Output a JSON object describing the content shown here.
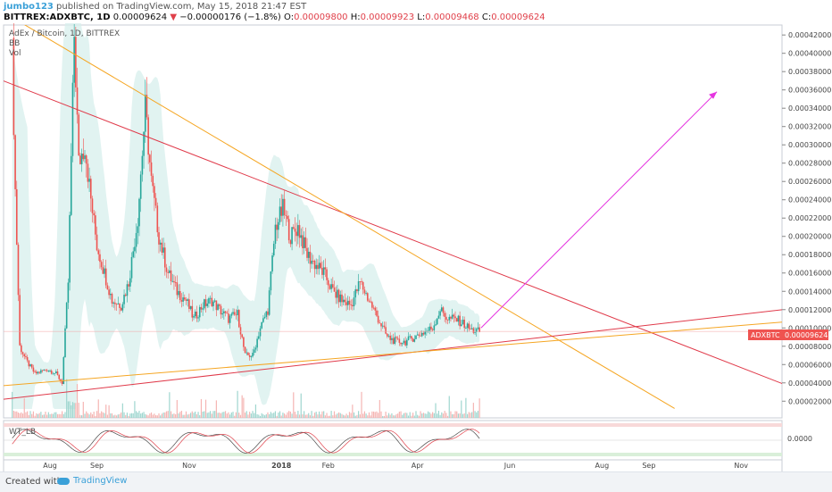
{
  "header": {
    "user": "jumbo123",
    "published": " published on TradingView.com, May 15, 2018 21:47 EST",
    "symbol": "BITTREX:ADXBTC, 1D",
    "last": "0.00009624",
    "change": "−0.00000176 (−1.8%)",
    "o_label": "O:",
    "o": "0.00009800",
    "h_label": "H:",
    "h": "0.00009923",
    "l_label": "L:",
    "l": "0.00009468",
    "c_label": "C:",
    "c": "0.00009624"
  },
  "legend": {
    "title": "AdEx / Bitcoin, 1D, BITTREX",
    "items": [
      "BB",
      "Vol"
    ]
  },
  "price_tag": {
    "symbol": "ADXBTC",
    "value": "0.00009624"
  },
  "oscillator": {
    "label": "WT_LB",
    "tick": "0.0000"
  },
  "footer": {
    "created": "Created with",
    "brand": "TradingView"
  },
  "colors": {
    "up": "#26a69a",
    "down": "#ef5350",
    "bb_fill": "#d7efec",
    "red_line": "#e03a4a",
    "orange_line": "#f5a623",
    "magenta": "#e535e0"
  },
  "chart_data": {
    "type": "candlestick",
    "title": "AdEx / Bitcoin, 1D, BITTREX",
    "y_axis_ticks": [
      "0.00042000",
      "0.00040000",
      "0.00038000",
      "0.00036000",
      "0.00034000",
      "0.00032000",
      "0.00030000",
      "0.00028000",
      "0.00026000",
      "0.00024000",
      "0.00022000",
      "0.00020000",
      "0.00018000",
      "0.00016000",
      "0.00014000",
      "0.00012000",
      "0.00010000",
      "0.00008000",
      "0.00006000",
      "0.00004000",
      "0.00002000"
    ],
    "ylim": [
      1.15e-05,
      0.000427
    ],
    "x_axis_ticks": [
      {
        "label": "Aug",
        "day": 26
      },
      {
        "label": "Sep",
        "day": 57
      },
      {
        "label": "Nov",
        "day": 118
      },
      {
        "label": "2018",
        "day": 179
      },
      {
        "label": "Feb",
        "day": 210
      },
      {
        "label": "Apr",
        "day": 269
      },
      {
        "label": "Jun",
        "day": 330
      },
      {
        "label": "Aug",
        "day": 391
      },
      {
        "label": "Sep",
        "day": 422
      },
      {
        "label": "Nov",
        "day": 483
      }
    ],
    "price_anchors": [
      [
        1,
        0.0004
      ],
      [
        3,
        0.00025
      ],
      [
        6,
        8e-05
      ],
      [
        10,
        6.5e-05
      ],
      [
        16,
        5e-05
      ],
      [
        24,
        5.5e-05
      ],
      [
        30,
        5e-05
      ],
      [
        34,
        4e-05
      ],
      [
        38,
        0.00015
      ],
      [
        42,
        0.00042
      ],
      [
        45,
        0.00028
      ],
      [
        49,
        0.0003
      ],
      [
        53,
        0.00024
      ],
      [
        57,
        0.00019
      ],
      [
        62,
        0.00016
      ],
      [
        67,
        0.00013
      ],
      [
        73,
        0.000125
      ],
      [
        78,
        0.00015
      ],
      [
        84,
        0.00022
      ],
      [
        89,
        0.00034
      ],
      [
        93,
        0.00026
      ],
      [
        98,
        0.0002
      ],
      [
        104,
        0.00016
      ],
      [
        110,
        0.00014
      ],
      [
        116,
        0.00013
      ],
      [
        121,
        0.00011
      ],
      [
        127,
        0.000125
      ],
      [
        133,
        0.00013
      ],
      [
        138,
        0.00012
      ],
      [
        144,
        0.00011
      ],
      [
        150,
        0.000115
      ],
      [
        155,
        7e-05
      ],
      [
        160,
        7e-05
      ],
      [
        165,
        0.0001
      ],
      [
        170,
        0.00012
      ],
      [
        175,
        0.00021
      ],
      [
        180,
        0.00023
      ],
      [
        185,
        0.0002
      ],
      [
        190,
        0.00021
      ],
      [
        196,
        0.00018
      ],
      [
        201,
        0.00017
      ],
      [
        207,
        0.00016
      ],
      [
        213,
        0.00014
      ],
      [
        219,
        0.00013
      ],
      [
        225,
        0.000125
      ],
      [
        231,
        0.00015
      ],
      [
        237,
        0.00013
      ],
      [
        243,
        0.00011
      ],
      [
        249,
        9e-05
      ],
      [
        255,
        8.5e-05
      ],
      [
        261,
        8.5e-05
      ],
      [
        267,
        9e-05
      ],
      [
        273,
        9.5e-05
      ],
      [
        279,
        0.0001
      ],
      [
        284,
        0.00012
      ],
      [
        289,
        0.00011
      ],
      [
        294,
        0.00011
      ],
      [
        299,
        0.000105
      ],
      [
        304,
        9.8e-05
      ],
      [
        310,
        9.6e-05
      ]
    ],
    "volume_levels": "low, with scattered spikes up to ~20% of volume pane",
    "trendlines": [
      {
        "name": "red descending",
        "color": "red",
        "points": [
          [
            -5,
            0.00037
          ],
          [
            537,
            2.2e-05
          ]
        ]
      },
      {
        "name": "orange descending",
        "color": "orange",
        "points": [
          [
            -5,
            0.000445
          ],
          [
            439,
            1.2e-05
          ]
        ]
      },
      {
        "name": "red ascending support",
        "color": "red",
        "points": [
          [
            -5,
            2.2e-05
          ],
          [
            537,
            0.000125
          ]
        ]
      },
      {
        "name": "orange ascending support",
        "color": "orange",
        "points": [
          [
            -5,
            3.7e-05
          ],
          [
            537,
            0.00011
          ]
        ]
      },
      {
        "name": "projection arrow",
        "color": "magenta",
        "points": [
          [
            311,
            0.0001
          ],
          [
            467,
            0.000358
          ]
        ]
      }
    ],
    "horizontal_line": 9.624e-05,
    "oscillator_tick": "0.0000"
  }
}
